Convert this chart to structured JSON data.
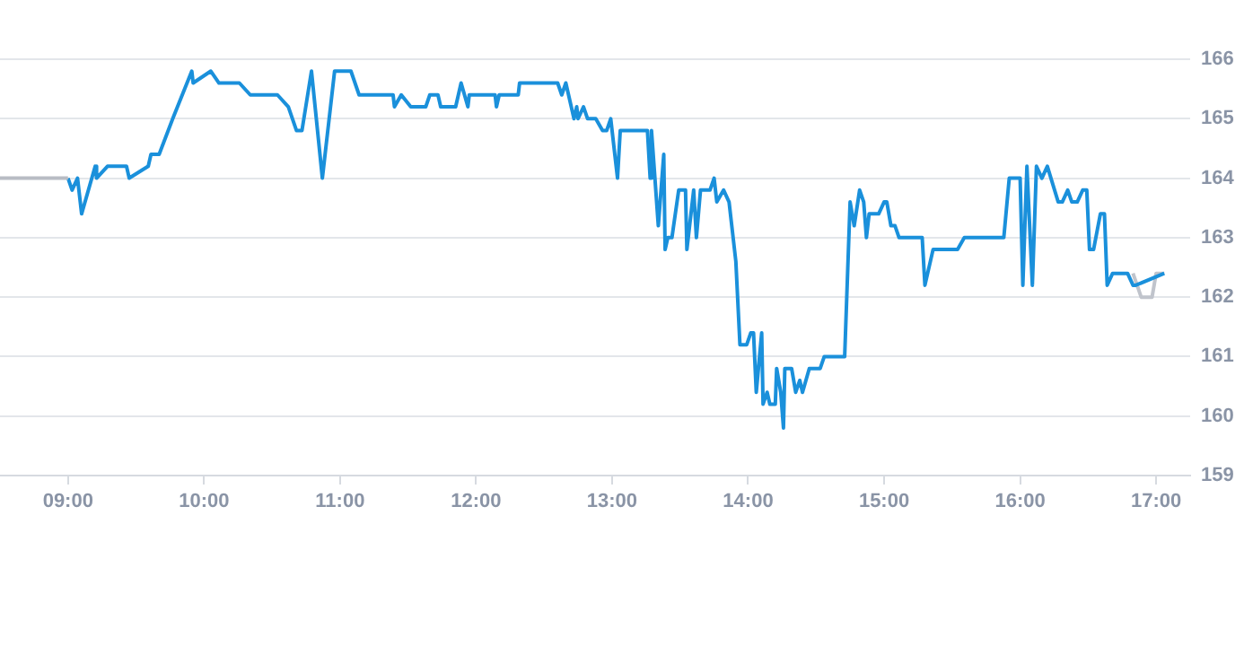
{
  "chart_data": {
    "type": "line",
    "xlim": [
      8.5,
      17.25
    ],
    "ylim": [
      159,
      166
    ],
    "xticks": [
      {
        "value": 9,
        "label": "09:00"
      },
      {
        "value": 10,
        "label": "10:00"
      },
      {
        "value": 11,
        "label": "11:00"
      },
      {
        "value": 12,
        "label": "12:00"
      },
      {
        "value": 13,
        "label": "13:00"
      },
      {
        "value": 14,
        "label": "14:00"
      },
      {
        "value": 15,
        "label": "15:00"
      },
      {
        "value": 16,
        "label": "16:00"
      },
      {
        "value": 17,
        "label": "17:00"
      }
    ],
    "yticks": [
      159,
      160,
      161,
      162,
      163,
      164,
      165,
      166
    ],
    "grid": "y",
    "legend": false,
    "marker": "none",
    "line_style": "solid",
    "series": [
      {
        "color": "#b8bcc4",
        "x": [
          8.5,
          9.0
        ],
        "values": [
          164.0,
          164.0
        ]
      },
      {
        "color": "#1a90db",
        "x": [
          9.0,
          9.03,
          9.07,
          9.1,
          9.2,
          9.21,
          9.29,
          9.43,
          9.45,
          9.59,
          9.61,
          9.67,
          9.77,
          9.91,
          9.92,
          10.05,
          10.11,
          10.26,
          10.34,
          10.54,
          10.62,
          10.68,
          10.72,
          10.79,
          10.87,
          10.96,
          11.08,
          11.14,
          11.39,
          11.4,
          11.45,
          11.52,
          11.63,
          11.66,
          11.72,
          11.74,
          11.85,
          11.89,
          11.94,
          11.95,
          12.14,
          12.15,
          12.17,
          12.31,
          12.32,
          12.6,
          12.63,
          12.66,
          12.72,
          12.74,
          12.75,
          12.79,
          12.82,
          12.88,
          12.93,
          12.96,
          12.99,
          13.04,
          13.06,
          13.26,
          13.28,
          13.29,
          13.34,
          13.38,
          13.39,
          13.41,
          13.44,
          13.49,
          13.54,
          13.55,
          13.6,
          13.62,
          13.65,
          13.72,
          13.75,
          13.77,
          13.82,
          13.86,
          13.91,
          13.94,
          13.99,
          14.02,
          14.04,
          14.06,
          14.1,
          14.11,
          14.14,
          14.16,
          14.2,
          14.21,
          14.24,
          14.26,
          14.27,
          14.32,
          14.35,
          14.38,
          14.4,
          14.45,
          14.53,
          14.56,
          14.71,
          14.75,
          14.78,
          14.82,
          14.85,
          14.87,
          14.89,
          14.96,
          15.0,
          15.02,
          15.05,
          15.08,
          15.11,
          15.28,
          15.3,
          15.36,
          15.54,
          15.59,
          15.88,
          15.92,
          16.0,
          16.02,
          16.05,
          16.09,
          16.12,
          16.16,
          16.2,
          16.28,
          16.31,
          16.35,
          16.38,
          16.42,
          16.46,
          16.49,
          16.51,
          16.54,
          16.59,
          16.62,
          16.64,
          16.68,
          16.79,
          16.83,
          16.85,
          17.06
        ],
        "values": [
          164.0,
          163.8,
          164.0,
          163.4,
          164.2,
          164.0,
          164.2,
          164.2,
          164.0,
          164.2,
          164.4,
          164.4,
          165.0,
          165.8,
          165.6,
          165.8,
          165.6,
          165.6,
          165.4,
          165.4,
          165.2,
          164.8,
          164.8,
          165.8,
          164.0,
          165.8,
          165.8,
          165.4,
          165.4,
          165.2,
          165.4,
          165.2,
          165.2,
          165.4,
          165.4,
          165.2,
          165.2,
          165.6,
          165.2,
          165.4,
          165.4,
          165.2,
          165.4,
          165.4,
          165.6,
          165.6,
          165.4,
          165.6,
          165.0,
          165.2,
          165.0,
          165.2,
          165.0,
          165.0,
          164.8,
          164.8,
          165.0,
          164.0,
          164.8,
          164.8,
          164.0,
          164.8,
          163.2,
          164.4,
          162.8,
          163.0,
          163.0,
          163.8,
          163.8,
          162.8,
          163.8,
          163.0,
          163.8,
          163.8,
          164.0,
          163.6,
          163.8,
          163.6,
          162.6,
          161.2,
          161.2,
          161.4,
          161.4,
          160.4,
          161.4,
          160.2,
          160.4,
          160.2,
          160.2,
          160.8,
          160.4,
          159.8,
          160.8,
          160.8,
          160.4,
          160.6,
          160.4,
          160.8,
          160.8,
          161.0,
          161.0,
          163.6,
          163.2,
          163.8,
          163.6,
          163.0,
          163.4,
          163.4,
          163.6,
          163.6,
          163.2,
          163.2,
          163.0,
          163.0,
          162.2,
          162.8,
          162.8,
          163.0,
          163.0,
          164.0,
          164.0,
          162.2,
          164.2,
          162.2,
          164.2,
          164.0,
          164.2,
          163.6,
          163.6,
          163.8,
          163.6,
          163.6,
          163.8,
          163.8,
          162.8,
          162.8,
          163.4,
          163.4,
          162.2,
          162.4,
          162.4,
          162.2,
          162.2,
          162.4
        ]
      },
      {
        "color": "#c0c4cc",
        "x": [
          16.83,
          16.89,
          16.97,
          17.0,
          17.06
        ],
        "values": [
          162.4,
          162.0,
          162.0,
          162.4,
          162.4
        ]
      }
    ]
  }
}
